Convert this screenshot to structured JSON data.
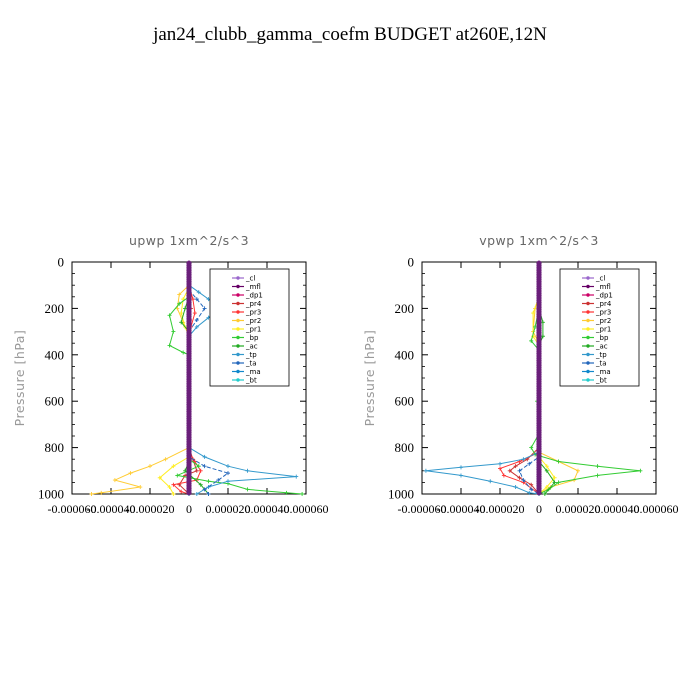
{
  "title": "jan24_clubb_gamma_coefm  BUDGET at260E,12N",
  "legend_entries": [
    "_cl",
    "_mfl",
    "_dp1",
    "_pr4",
    "_pr3",
    "_pr2",
    "_pr1",
    "_bp",
    "_ac",
    "_tp",
    "_ta",
    "_ma",
    "_bt"
  ],
  "series_colors": {
    "_cl": "#9966cc",
    "_mfl": "#660066",
    "_dp1": "#cc0066",
    "_pr4": "#cc3333",
    "_pr3": "#ff3333",
    "_pr2": "#ffcc33",
    "_pr1": "#ffee22",
    "_bp": "#33cc33",
    "_ac": "#22aa22",
    "_tp": "#3399cc",
    "_ta": "#2266bb",
    "_ma": "#1188cc",
    "_bt": "#22cccc"
  },
  "chart_data": [
    {
      "type": "line",
      "title": "upwp   1xm^2/s^3",
      "ylabel": "Pressure [hPa]",
      "ylim": [
        1000,
        0
      ],
      "xlim": [
        -6e-05,
        6e-05
      ],
      "yticks": [
        0,
        200,
        400,
        600,
        800,
        1000
      ],
      "xtick_labels": [
        "-0.000060",
        "-0.000040",
        "-0.000020",
        "0",
        "0.000020",
        "0.000040",
        "0.000060"
      ],
      "legend_position": "top-right",
      "series": [
        {
          "name": "_cl",
          "points": [
            [
              0,
              100
            ],
            [
              0,
              1000
            ]
          ]
        },
        {
          "name": "_mfl",
          "points": [
            [
              0,
              100
            ],
            [
              0,
              1000
            ]
          ]
        },
        {
          "name": "_dp1",
          "points": [
            [
              0,
              100
            ],
            [
              0,
              1000
            ]
          ]
        },
        {
          "name": "_pr4",
          "points": [
            [
              0,
              100
            ],
            [
              5e-07,
              150
            ],
            [
              1e-06,
              200
            ],
            [
              5e-07,
              250
            ],
            [
              0,
              300
            ],
            [
              0,
              800
            ],
            [
              2e-06,
              850
            ],
            [
              4e-06,
              900
            ],
            [
              -2e-06,
              920
            ],
            [
              -5e-06,
              960
            ],
            [
              0,
              1000
            ]
          ]
        },
        {
          "name": "_pr3",
          "points": [
            [
              0,
              100
            ],
            [
              2e-06,
              160
            ],
            [
              3e-06,
              220
            ],
            [
              1e-06,
              280
            ],
            [
              0,
              330
            ],
            [
              0,
              820
            ],
            [
              3e-06,
              860
            ],
            [
              6e-06,
              900
            ],
            [
              4e-06,
              940
            ],
            [
              -8e-06,
              960
            ],
            [
              -4e-06,
              990
            ],
            [
              0,
              1000
            ]
          ]
        },
        {
          "name": "_pr2",
          "points": [
            [
              0,
              100
            ],
            [
              -5e-06,
              140
            ],
            [
              -6e-06,
              200
            ],
            [
              -3e-06,
              260
            ],
            [
              0,
              320
            ],
            [
              0,
              800
            ],
            [
              -1.2e-05,
              850
            ],
            [
              -2e-05,
              880
            ],
            [
              -3e-05,
              910
            ],
            [
              -3.8e-05,
              940
            ],
            [
              -2.5e-05,
              970
            ],
            [
              -4.5e-05,
              995
            ],
            [
              -5e-05,
              1000
            ]
          ]
        },
        {
          "name": "_pr1",
          "points": [
            [
              0,
              110
            ],
            [
              -3e-06,
              160
            ],
            [
              -4e-06,
              220
            ],
            [
              -2e-06,
              280
            ],
            [
              0,
              320
            ],
            [
              0,
              840
            ],
            [
              -8e-06,
              880
            ],
            [
              -1.5e-05,
              930
            ],
            [
              -1e-05,
              970
            ],
            [
              -8e-06,
              1000
            ]
          ]
        },
        {
          "name": "_bp",
          "points": [
            [
              0,
              150
            ],
            [
              -5e-06,
              180
            ],
            [
              -1e-05,
              230
            ],
            [
              -8e-06,
              300
            ],
            [
              -1e-05,
              360
            ],
            [
              -3e-06,
              390
            ],
            [
              0,
              400
            ],
            [
              0,
              850
            ],
            [
              5e-06,
              880
            ],
            [
              -6e-06,
              920
            ],
            [
              1e-05,
              945
            ],
            [
              2e-05,
              955
            ],
            [
              3e-05,
              980
            ],
            [
              5e-05,
              995
            ],
            [
              5.8e-05,
              1000
            ]
          ]
        },
        {
          "name": "_ac",
          "points": [
            [
              0,
              150
            ],
            [
              -2e-06,
              200
            ],
            [
              -4e-06,
              260
            ],
            [
              0,
              300
            ],
            [
              0,
              860
            ],
            [
              -2e-06,
              900
            ],
            [
              6e-06,
              960
            ],
            [
              1e-05,
              1000
            ]
          ]
        },
        {
          "name": "_tp",
          "points": [
            [
              0,
              100
            ],
            [
              5e-06,
              130
            ],
            [
              1e-05,
              160
            ],
            [
              1.6e-05,
              200
            ],
            [
              1e-05,
              240
            ],
            [
              4e-06,
              280
            ],
            [
              0,
              320
            ],
            [
              0,
              800
            ],
            [
              8e-06,
              840
            ],
            [
              2e-05,
              880
            ],
            [
              3e-05,
              900
            ],
            [
              5.5e-05,
              925
            ],
            [
              2e-05,
              945
            ],
            [
              1e-05,
              970
            ],
            [
              4e-06,
              1000
            ]
          ]
        },
        {
          "name": "_ta",
          "points": [
            [
              0,
              120
            ],
            [
              4e-06,
              160
            ],
            [
              8e-06,
              200
            ],
            [
              4e-06,
              250
            ],
            [
              0,
              300
            ],
            [
              0,
              840
            ],
            [
              8e-06,
              880
            ],
            [
              2e-05,
              910
            ],
            [
              1.5e-05,
              940
            ],
            [
              8e-06,
              980
            ],
            [
              1e-05,
              1000
            ]
          ]
        },
        {
          "name": "_ma",
          "points": [
            [
              0,
              100
            ],
            [
              0,
              1000
            ]
          ]
        },
        {
          "name": "_bt",
          "points": [
            [
              0,
              100
            ],
            [
              0,
              1000
            ]
          ]
        }
      ]
    },
    {
      "type": "line",
      "title": "vpwp   1xm^2/s^3",
      "ylabel": "Pressure [hPa]",
      "ylim": [
        1000,
        0
      ],
      "xlim": [
        -6e-05,
        6e-05
      ],
      "yticks": [
        0,
        200,
        400,
        600,
        800,
        1000
      ],
      "xtick_labels": [
        "-0.000060",
        "-0.000040",
        "-0.000020",
        "0",
        "0.000020",
        "0.000040",
        "0.000060"
      ],
      "legend_position": "top-right",
      "series": [
        {
          "name": "_cl",
          "points": [
            [
              0,
              100
            ],
            [
              0,
              1000
            ]
          ]
        },
        {
          "name": "_mfl",
          "points": [
            [
              0,
              100
            ],
            [
              0,
              1000
            ]
          ]
        },
        {
          "name": "_dp1",
          "points": [
            [
              0,
              100
            ],
            [
              0,
              1000
            ]
          ]
        },
        {
          "name": "_pr4",
          "points": [
            [
              0,
              100
            ],
            [
              0,
              800
            ],
            [
              -6e-06,
              850
            ],
            [
              -1.2e-05,
              880
            ],
            [
              -1.5e-05,
              900
            ],
            [
              -1e-05,
              930
            ],
            [
              -4e-06,
              960
            ],
            [
              0,
              1000
            ]
          ]
        },
        {
          "name": "_pr3",
          "points": [
            [
              0,
              100
            ],
            [
              0,
              820
            ],
            [
              -1e-05,
              860
            ],
            [
              -2e-05,
              890
            ],
            [
              -1.8e-05,
              920
            ],
            [
              -8e-06,
              950
            ],
            [
              0,
              1000
            ]
          ]
        },
        {
          "name": "_pr2",
          "points": [
            [
              0,
              150
            ],
            [
              -2e-06,
              200
            ],
            [
              -3e-06,
              300
            ],
            [
              0,
              350
            ],
            [
              0,
              820
            ],
            [
              1e-05,
              860
            ],
            [
              2e-05,
              900
            ],
            [
              1.8e-05,
              940
            ],
            [
              6e-06,
              970
            ],
            [
              0,
              1000
            ]
          ]
        },
        {
          "name": "_pr1",
          "points": [
            [
              0,
              150
            ],
            [
              -3e-06,
              220
            ],
            [
              -3e-06,
              320
            ],
            [
              0,
              360
            ],
            [
              0,
              840
            ],
            [
              4e-06,
              880
            ],
            [
              8e-06,
              930
            ],
            [
              4e-06,
              970
            ],
            [
              0,
              1000
            ]
          ]
        },
        {
          "name": "_bp",
          "points": [
            [
              0,
              200
            ],
            [
              -2e-06,
              280
            ],
            [
              -4e-06,
              340
            ],
            [
              0,
              380
            ],
            [
              0,
              580
            ],
            [
              -1e-06,
              600
            ],
            [
              0,
              620
            ],
            [
              0,
              740
            ],
            [
              -4e-06,
              800
            ],
            [
              -2e-06,
              830
            ],
            [
              1e-05,
              860
            ],
            [
              3e-05,
              880
            ],
            [
              5.2e-05,
              900
            ],
            [
              3e-05,
              920
            ],
            [
              1e-05,
              950
            ],
            [
              5e-06,
              980
            ],
            [
              0,
              1000
            ]
          ]
        },
        {
          "name": "_ac",
          "points": [
            [
              0,
              200
            ],
            [
              2e-06,
              260
            ],
            [
              2e-06,
              320
            ],
            [
              0,
              360
            ],
            [
              0,
              860
            ],
            [
              4e-06,
              900
            ],
            [
              8e-06,
              950
            ],
            [
              3e-06,
              1000
            ]
          ]
        },
        {
          "name": "_tp",
          "points": [
            [
              0,
              100
            ],
            [
              0,
              820
            ],
            [
              -8e-06,
              850
            ],
            [
              -2e-05,
              870
            ],
            [
              -4e-05,
              885
            ],
            [
              -5.8e-05,
              900
            ],
            [
              -4e-05,
              920
            ],
            [
              -2.5e-05,
              945
            ],
            [
              -1.2e-05,
              970
            ],
            [
              -5e-06,
              995
            ],
            [
              0,
              1000
            ]
          ]
        },
        {
          "name": "_ta",
          "points": [
            [
              0,
              100
            ],
            [
              0,
              840
            ],
            [
              -5e-06,
              870
            ],
            [
              -1e-05,
              900
            ],
            [
              -8e-06,
              940
            ],
            [
              -4e-06,
              980
            ],
            [
              0,
              1000
            ]
          ]
        },
        {
          "name": "_ma",
          "points": [
            [
              0,
              100
            ],
            [
              0,
              1000
            ]
          ]
        },
        {
          "name": "_bt",
          "points": [
            [
              0,
              100
            ],
            [
              0,
              1000
            ]
          ]
        }
      ]
    }
  ]
}
